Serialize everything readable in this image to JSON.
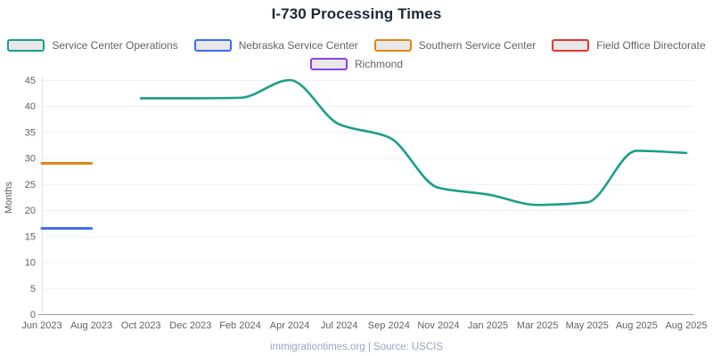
{
  "title": "I-730 Processing Times",
  "footer": "immigrationtimes.org | Source: USCIS",
  "theme": {
    "title_text": "#1d2736",
    "legend_text": "#636363",
    "swatch_fill": "#e8e8e8",
    "grid_line": "#f2f2f6",
    "x_axis_line": "#9e9e9e",
    "y_axis_line": "#e4e4e4",
    "tick_text": "#616161",
    "axis_title_text": "#5c5c5c",
    "footer_text": "#9aa5c6"
  },
  "chart_data": {
    "type": "line",
    "title": "I-730 Processing Times",
    "xlabel": "",
    "ylabel": "Months",
    "ylim": [
      0,
      45
    ],
    "ytick_step": 5,
    "grid": true,
    "legend_position": "top",
    "legend_rows": [
      4,
      1
    ],
    "categories": [
      "Jun 2023",
      "Aug 2023",
      "Oct 2023",
      "Dec 2023",
      "Feb 2024",
      "Apr 2024",
      "Jul 2024",
      "Sep 2024",
      "Nov 2024",
      "Jan 2025",
      "Mar 2025",
      "May 2025",
      "Aug 2025",
      "Aug 2025"
    ],
    "series": [
      {
        "name": "Service Center Operations",
        "color": "#1a9e8c",
        "line_width": 2.6,
        "values": [
          null,
          null,
          41.5,
          41.5,
          41.6,
          45,
          36.5,
          34,
          24.3,
          23,
          21,
          21.5,
          31.4,
          31
        ]
      },
      {
        "name": "Nebraska Service Center",
        "color": "#3d6bf0",
        "line_width": 3,
        "values": [
          16.5,
          16.5,
          null,
          null,
          null,
          null,
          null,
          null,
          null,
          null,
          null,
          null,
          null,
          null
        ]
      },
      {
        "name": "Southern Service Center",
        "color": "#de8618",
        "line_width": 3,
        "values": [
          29,
          29,
          null,
          null,
          null,
          null,
          null,
          null,
          null,
          null,
          null,
          null,
          null,
          null
        ]
      },
      {
        "name": "Field Office Directorate",
        "color": "#e23430",
        "line_width": 3,
        "values": [
          null,
          null,
          null,
          null,
          null,
          null,
          null,
          null,
          null,
          null,
          null,
          null,
          null,
          null
        ]
      },
      {
        "name": "Richmond",
        "color": "#8a41ea",
        "line_width": 3,
        "values": [
          null,
          null,
          null,
          null,
          null,
          null,
          null,
          null,
          null,
          null,
          null,
          null,
          null,
          null
        ]
      }
    ]
  }
}
